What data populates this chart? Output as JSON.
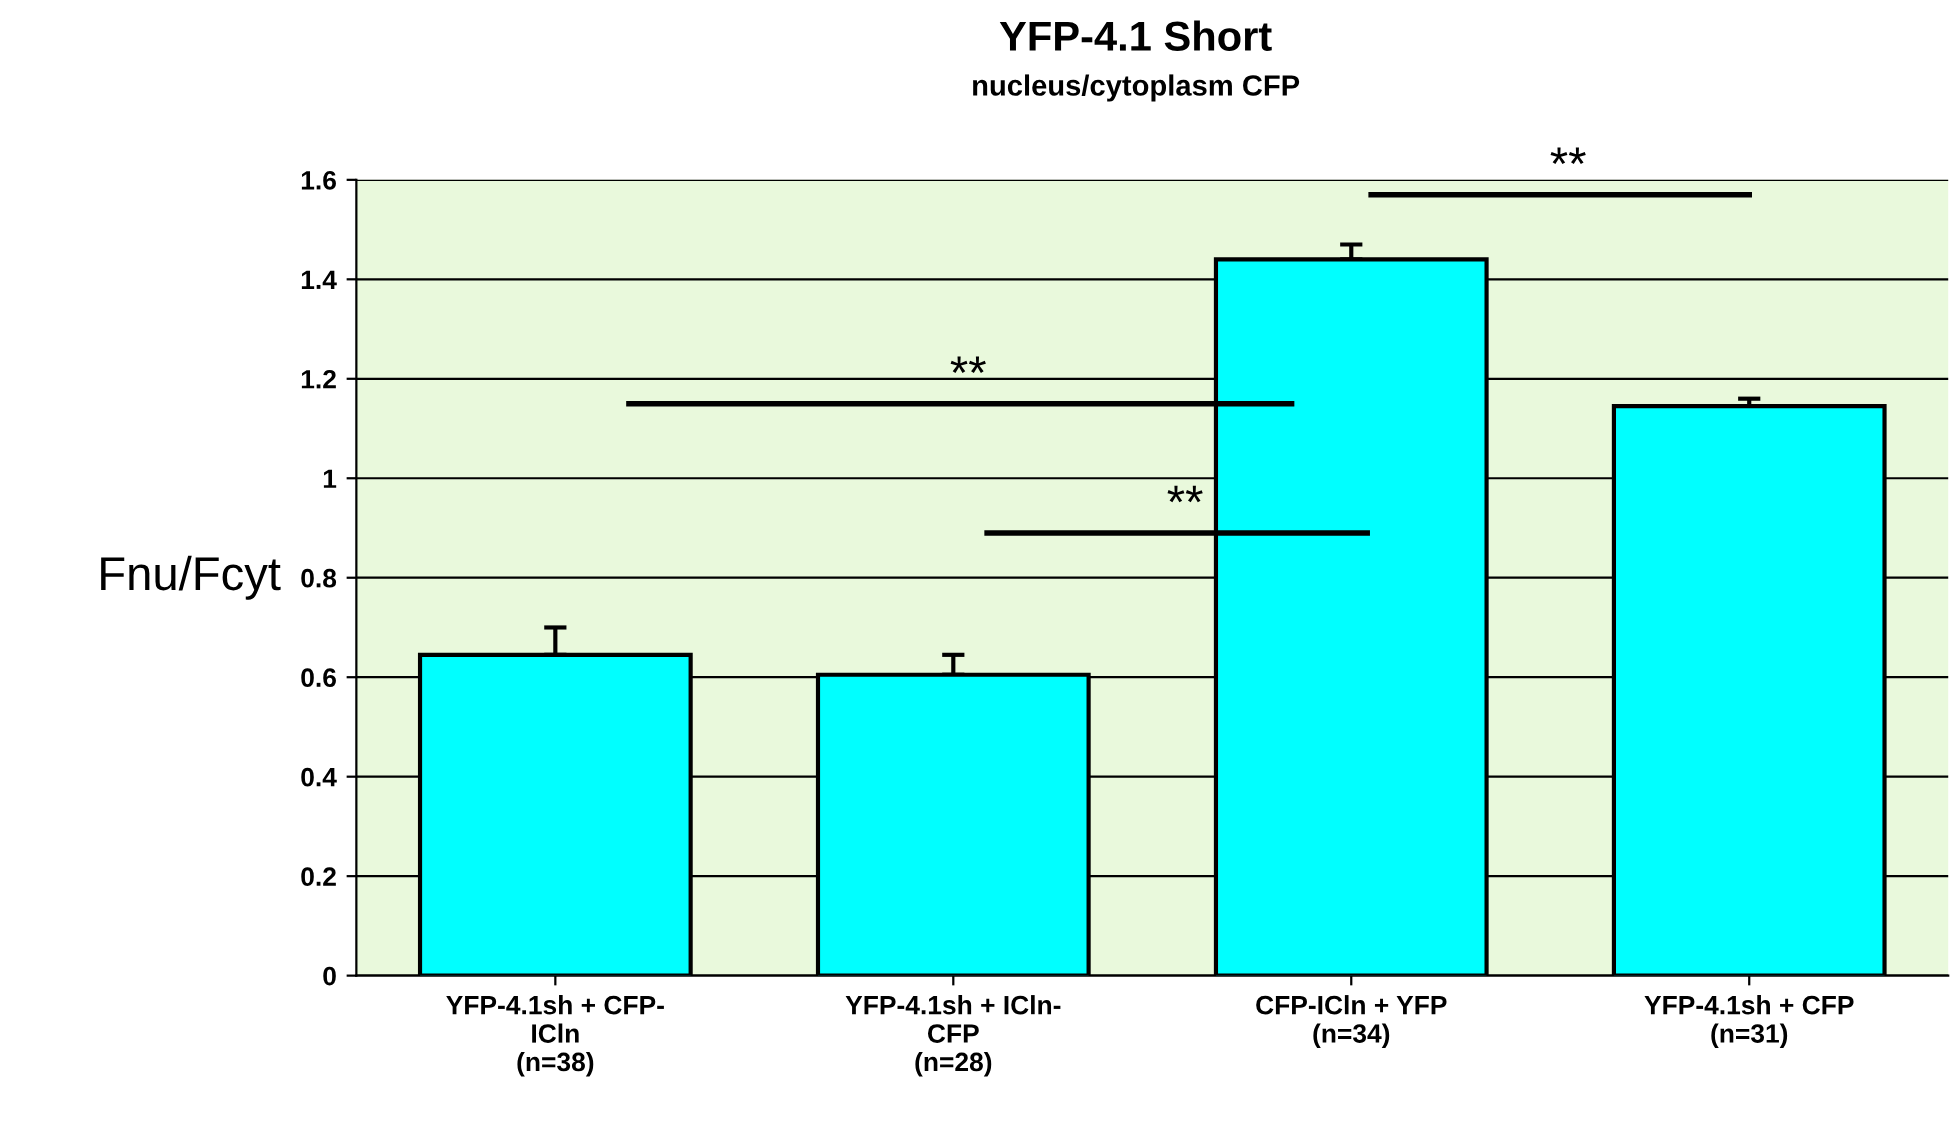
{
  "chart_data": {
    "type": "bar",
    "title": "YFP-4.1 Short",
    "subtitle": "nucleus/cytoplasm CFP",
    "ylabel": "Fnu/Fcyt",
    "categories": [
      "YFP-4.1sh + CFP-\nICln\n(n=38)",
      "YFP-4.1sh + ICln-\nCFP\n(n=28)",
      "CFP-ICln + YFP\n(n=34)",
      "YFP-4.1sh + CFP\n(n=31)"
    ],
    "values": [
      0.645,
      0.605,
      1.44,
      1.145
    ],
    "errors": [
      0.055,
      0.04,
      0.03,
      0.015
    ],
    "color": "#00ffff",
    "ylim": [
      0,
      1.6
    ],
    "yticks": [
      0,
      0.2,
      0.4,
      0.6,
      0.8,
      1,
      1.2,
      1.4,
      1.6
    ],
    "grid": "y",
    "legend": false,
    "annotations": [
      "**",
      "**",
      "**"
    ]
  }
}
